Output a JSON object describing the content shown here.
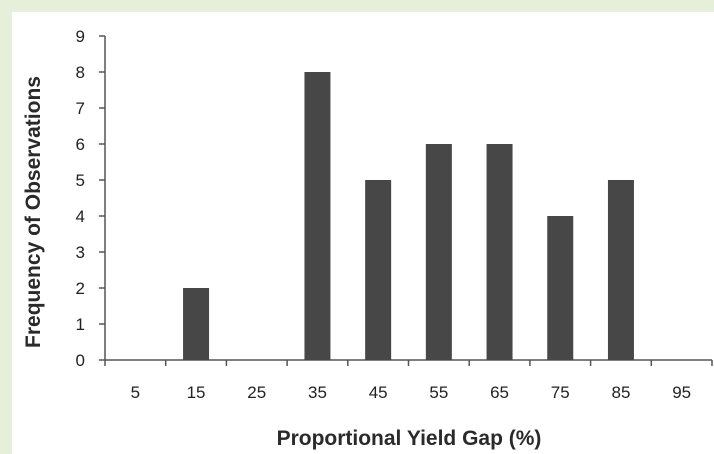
{
  "chart_data": {
    "type": "bar",
    "categories": [
      "5",
      "15",
      "25",
      "35",
      "45",
      "55",
      "65",
      "75",
      "85",
      "95"
    ],
    "values": [
      0,
      2,
      0,
      8,
      5,
      6,
      6,
      4,
      5,
      0
    ],
    "title": "",
    "xlabel": "Proportional Yield Gap (%)",
    "ylabel": "Frequency of Observations",
    "ylim": [
      0,
      9
    ],
    "yticks": [
      "0",
      "1",
      "2",
      "3",
      "4",
      "5",
      "6",
      "7",
      "8",
      "9"
    ],
    "grid": false,
    "legend": "none",
    "bar_color": "#474747",
    "axis_color": "#555555"
  }
}
